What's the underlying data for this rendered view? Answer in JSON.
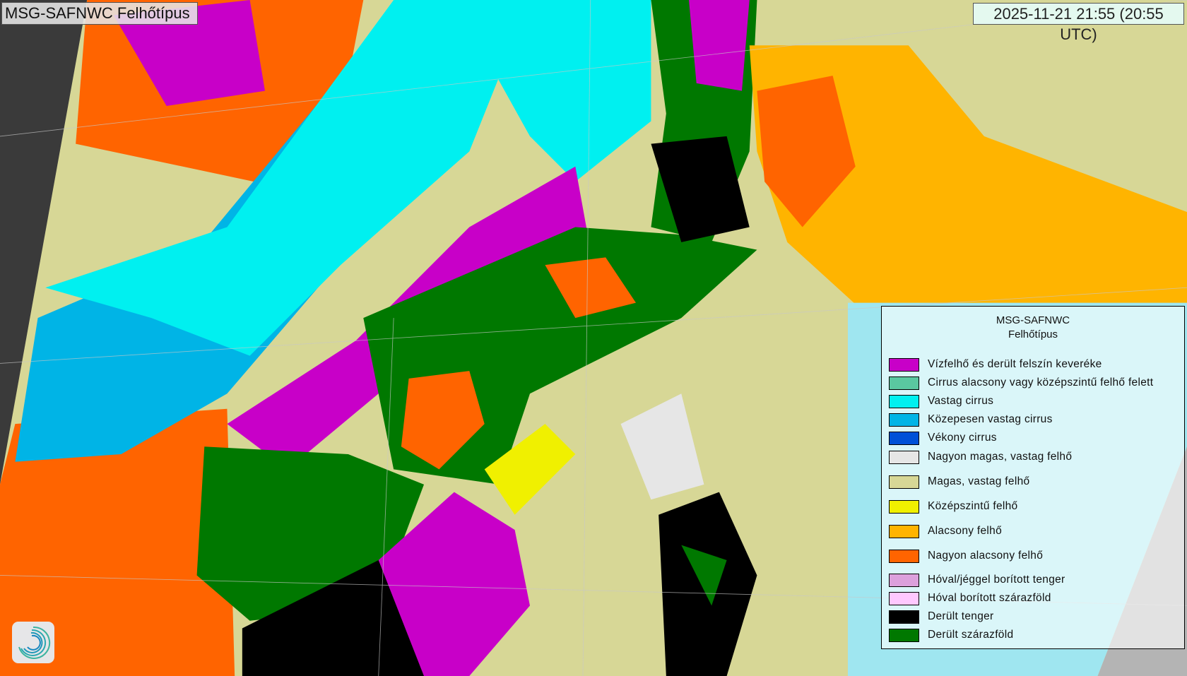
{
  "header": {
    "title": "MSG-SAFNWC Felhőtípus",
    "timestamp": "2025-11-21 21:55 (20:55 UTC)"
  },
  "legend": {
    "title_line1": "MSG-SAFNWC",
    "title_line2": "Felhőtípus",
    "items": [
      {
        "label": "Vízfelhő és derült felszín keveréke",
        "color": "#c800c8"
      },
      {
        "label": "Cirrus alacsony vagy középszintű felhő felett",
        "color": "#5ac8a0"
      },
      {
        "label": "Vastag cirrus",
        "color": "#00f0f0"
      },
      {
        "label": "Közepesen vastag cirrus",
        "color": "#00b4e6"
      },
      {
        "label": "Vékony cirrus",
        "color": "#0050d7"
      },
      {
        "label": "Nagyon magas, vastag felhő",
        "color": "#e6e6e6"
      },
      {
        "label": "Magas, vastag felhő",
        "color": "#d7d796"
      },
      {
        "label": "Középszintű felhő",
        "color": "#f0f000"
      },
      {
        "label": "Alacsony felhő",
        "color": "#ffb400"
      },
      {
        "label": "Nagyon alacsony felhő",
        "color": "#ff6400"
      },
      {
        "label": "Hóval/jéggel borított tenger",
        "color": "#dca0dc"
      },
      {
        "label": "Hóval borított szárazföld",
        "color": "#ffc8ff"
      },
      {
        "label": "Derült tenger",
        "color": "#000000"
      },
      {
        "label": "Derült szárazföld",
        "color": "#007800"
      }
    ]
  },
  "map": {
    "offdisk_color": "#3a3a3a",
    "nodata_color": "#b4b4b4",
    "coastline_color": "#ffffff"
  },
  "logo": {
    "icon": "swirl-logo-icon"
  }
}
